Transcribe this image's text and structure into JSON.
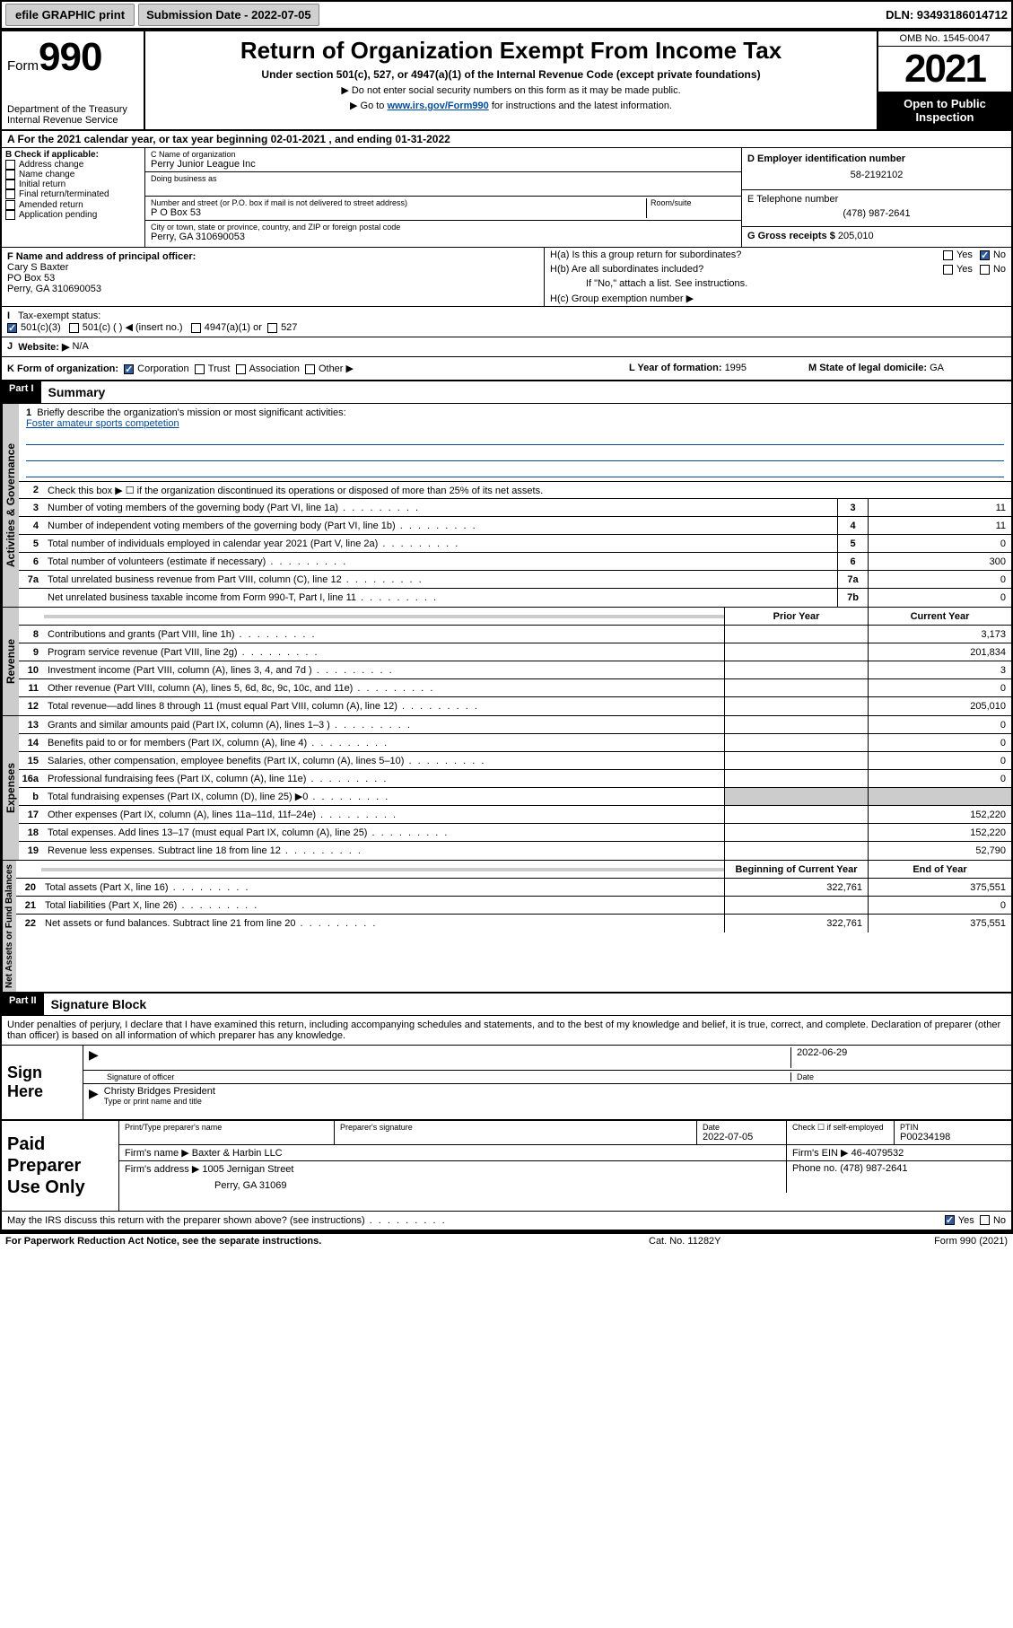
{
  "topbar": {
    "efile_btn": "efile GRAPHIC print",
    "submission_label": "Submission Date - 2022-07-05",
    "dln": "DLN: 93493186014712"
  },
  "header": {
    "form_word": "Form",
    "form_num": "990",
    "dept": "Department of the Treasury",
    "irs": "Internal Revenue Service",
    "title": "Return of Organization Exempt From Income Tax",
    "subtitle": "Under section 501(c), 527, or 4947(a)(1) of the Internal Revenue Code (except private foundations)",
    "note1": "▶ Do not enter social security numbers on this form as it may be made public.",
    "note2_pre": "▶ Go to ",
    "note2_link": "www.irs.gov/Form990",
    "note2_post": " for instructions and the latest information.",
    "omb": "OMB No. 1545-0047",
    "year": "2021",
    "inspect": "Open to Public Inspection"
  },
  "period": {
    "text_pre": "A For the 2021 calendar year, or tax year beginning ",
    "begin": "02-01-2021",
    "mid": " , and ending ",
    "end": "01-31-2022"
  },
  "boxB": {
    "label": "B Check if applicable:",
    "items": [
      "Address change",
      "Name change",
      "Initial return",
      "Final return/terminated",
      "Amended return",
      "Application pending"
    ]
  },
  "boxC": {
    "name_label": "C Name of organization",
    "name": "Perry Junior League Inc",
    "dba_label": "Doing business as",
    "addr_label": "Number and street (or P.O. box if mail is not delivered to street address)",
    "room_label": "Room/suite",
    "addr": "P O Box 53",
    "city_label": "City or town, state or province, country, and ZIP or foreign postal code",
    "city": "Perry, GA  310690053"
  },
  "boxD": {
    "ein_label": "D Employer identification number",
    "ein": "58-2192102",
    "phone_label": "E Telephone number",
    "phone": "(478) 987-2641",
    "gross_label": "G Gross receipts $ ",
    "gross": "205,010"
  },
  "boxF": {
    "label": "F Name and address of principal officer:",
    "name": "Cary S Baxter",
    "line2": "PO Box 53",
    "line3": "Perry, GA  310690053"
  },
  "boxH": {
    "a_label": "H(a)  Is this a group return for subordinates?",
    "b_label": "H(b)  Are all subordinates included?",
    "b_note": "If \"No,\" attach a list. See instructions.",
    "c_label": "H(c)  Group exemption number ▶",
    "yes": "Yes",
    "no": "No"
  },
  "taxexempt": {
    "label_I": "I",
    "label": "Tax-exempt status:",
    "c3": "501(c)(3)",
    "c_insert": "501(c) (    ) ◀ (insert no.)",
    "a1": "4947(a)(1) or",
    "s527": "527"
  },
  "website": {
    "label_J": "J",
    "label": "Website: ▶",
    "val": "N/A"
  },
  "boxK": {
    "label": "K Form of organization:",
    "corp": "Corporation",
    "trust": "Trust",
    "assoc": "Association",
    "other": "Other ▶"
  },
  "boxL": {
    "label": "L Year of formation: ",
    "val": "1995"
  },
  "boxM": {
    "label": "M State of legal domicile: ",
    "val": "GA"
  },
  "part1": {
    "label": "Part I",
    "title": "Summary"
  },
  "summary": {
    "line1_label": "Briefly describe the organization's mission or most significant activities:",
    "line1_text": "Foster amateur sports competetion",
    "line2_label": "Check this box ▶ ☐  if the organization discontinued its operations or disposed of more than 25% of its net assets.",
    "rows_gov": [
      {
        "n": "3",
        "t": "Number of voting members of the governing body (Part VI, line 1a)",
        "box": "3",
        "v": "11"
      },
      {
        "n": "4",
        "t": "Number of independent voting members of the governing body (Part VI, line 1b)",
        "box": "4",
        "v": "11"
      },
      {
        "n": "5",
        "t": "Total number of individuals employed in calendar year 2021 (Part V, line 2a)",
        "box": "5",
        "v": "0"
      },
      {
        "n": "6",
        "t": "Total number of volunteers (estimate if necessary)",
        "box": "6",
        "v": "300"
      },
      {
        "n": "7a",
        "t": "Total unrelated business revenue from Part VIII, column (C), line 12",
        "box": "7a",
        "v": "0"
      },
      {
        "n": "",
        "t": "Net unrelated business taxable income from Form 990-T, Part I, line 11",
        "box": "7b",
        "v": "0"
      }
    ],
    "col_prior": "Prior Year",
    "col_current": "Current Year",
    "rows_rev": [
      {
        "n": "8",
        "t": "Contributions and grants (Part VIII, line 1h)",
        "p": "",
        "c": "3,173"
      },
      {
        "n": "9",
        "t": "Program service revenue (Part VIII, line 2g)",
        "p": "",
        "c": "201,834"
      },
      {
        "n": "10",
        "t": "Investment income (Part VIII, column (A), lines 3, 4, and 7d )",
        "p": "",
        "c": "3"
      },
      {
        "n": "11",
        "t": "Other revenue (Part VIII, column (A), lines 5, 6d, 8c, 9c, 10c, and 11e)",
        "p": "",
        "c": "0"
      },
      {
        "n": "12",
        "t": "Total revenue—add lines 8 through 11 (must equal Part VIII, column (A), line 12)",
        "p": "",
        "c": "205,010"
      }
    ],
    "rows_exp": [
      {
        "n": "13",
        "t": "Grants and similar amounts paid (Part IX, column (A), lines 1–3 )",
        "p": "",
        "c": "0"
      },
      {
        "n": "14",
        "t": "Benefits paid to or for members (Part IX, column (A), line 4)",
        "p": "",
        "c": "0"
      },
      {
        "n": "15",
        "t": "Salaries, other compensation, employee benefits (Part IX, column (A), lines 5–10)",
        "p": "",
        "c": "0"
      },
      {
        "n": "16a",
        "t": "Professional fundraising fees (Part IX, column (A), line 11e)",
        "p": "",
        "c": "0"
      },
      {
        "n": "b",
        "t": "Total fundraising expenses (Part IX, column (D), line 25) ▶0",
        "p": "shade",
        "c": "shade"
      },
      {
        "n": "17",
        "t": "Other expenses (Part IX, column (A), lines 11a–11d, 11f–24e)",
        "p": "",
        "c": "152,220"
      },
      {
        "n": "18",
        "t": "Total expenses. Add lines 13–17 (must equal Part IX, column (A), line 25)",
        "p": "",
        "c": "152,220"
      },
      {
        "n": "19",
        "t": "Revenue less expenses. Subtract line 18 from line 12",
        "p": "",
        "c": "52,790"
      }
    ],
    "col_begin": "Beginning of Current Year",
    "col_end": "End of Year",
    "rows_net": [
      {
        "n": "20",
        "t": "Total assets (Part X, line 16)",
        "p": "322,761",
        "c": "375,551"
      },
      {
        "n": "21",
        "t": "Total liabilities (Part X, line 26)",
        "p": "",
        "c": "0"
      },
      {
        "n": "22",
        "t": "Net assets or fund balances. Subtract line 21 from line 20",
        "p": "322,761",
        "c": "375,551"
      }
    ],
    "tab_gov": "Activities & Governance",
    "tab_rev": "Revenue",
    "tab_exp": "Expenses",
    "tab_net": "Net Assets or Fund Balances"
  },
  "part2": {
    "label": "Part II",
    "title": "Signature Block"
  },
  "sig": {
    "decl": "Under penalties of perjury, I declare that I have examined this return, including accompanying schedules and statements, and to the best of my knowledge and belief, it is true, correct, and complete. Declaration of preparer (other than officer) is based on all information of which preparer has any knowledge.",
    "sign_here": "Sign Here",
    "sig_officer": "Signature of officer",
    "date_label": "Date",
    "date_val": "2022-06-29",
    "officer_name": "Christy Bridges  President",
    "type_name": "Type or print name and title"
  },
  "prep": {
    "label": "Paid Preparer Use Only",
    "col1": "Print/Type preparer's name",
    "col2": "Preparer's signature",
    "col3_label": "Date",
    "col3_val": "2022-07-05",
    "col4_label": "Check ☐ if self-employed",
    "col5_label": "PTIN",
    "col5_val": "P00234198",
    "firm_name_label": "Firm's name    ▶",
    "firm_name": "Baxter & Harbin LLC",
    "firm_ein_label": "Firm's EIN ▶",
    "firm_ein": "46-4079532",
    "firm_addr_label": "Firm's address ▶",
    "firm_addr1": "1005 Jernigan Street",
    "firm_addr2": "Perry, GA  31069",
    "firm_phone_label": "Phone no. ",
    "firm_phone": "(478) 987-2641"
  },
  "discuss": {
    "text": "May the IRS discuss this return with the preparer shown above? (see instructions)",
    "yes": "Yes",
    "no": "No"
  },
  "footer": {
    "left": "For Paperwork Reduction Act Notice, see the separate instructions.",
    "mid": "Cat. No. 11282Y",
    "right": "Form 990 (2021)"
  },
  "colors": {
    "link": "#004b9b",
    "shade": "#cccccc",
    "black": "#000000",
    "check_bg": "#2e5c9e"
  }
}
